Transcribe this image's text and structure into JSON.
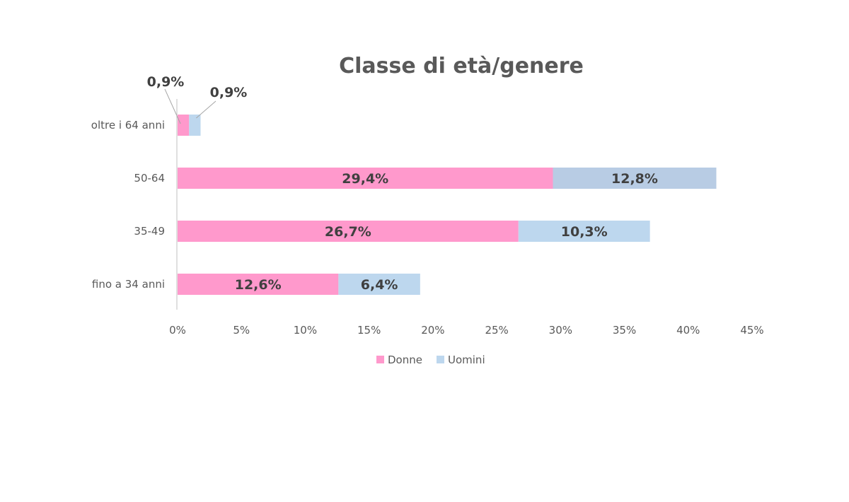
{
  "chart_data": {
    "type": "bar",
    "orientation": "horizontal",
    "stacked": true,
    "title": "Classe di età/genere",
    "categories": [
      "oltre i 64 anni",
      "50-64",
      "35-49",
      "fino a 34 anni"
    ],
    "series": [
      {
        "name": "Donne",
        "color": "#FF99CC",
        "values": [
          0.9,
          29.4,
          26.7,
          12.6
        ],
        "labels": [
          "0,9%",
          "29,4%",
          "26,7%",
          "12,6%"
        ]
      },
      {
        "name": "Uomini",
        "colors": [
          "#BDD7EE",
          "#B8CCE4",
          "#BDD7EE",
          "#BDD7EE"
        ],
        "color": "#BDD7EE",
        "values": [
          0.9,
          12.8,
          10.3,
          6.4
        ],
        "labels": [
          "0,9%",
          "12,8%",
          "10,3%",
          "6,4%"
        ]
      }
    ],
    "x_ticks": [
      "0%",
      "5%",
      "10%",
      "15%",
      "20%",
      "25%",
      "30%",
      "35%",
      "40%",
      "45%"
    ],
    "xlim": [
      0,
      45
    ],
    "grid": false,
    "legend_position": "bottom",
    "xlabel": "",
    "ylabel": ""
  }
}
